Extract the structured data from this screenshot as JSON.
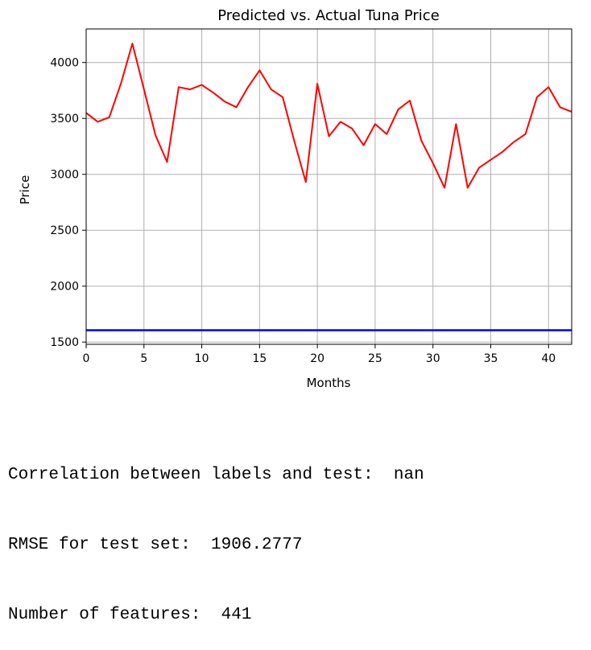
{
  "chart_data": {
    "type": "line",
    "title": "Predicted vs. Actual Tuna Price",
    "xlabel": "Months",
    "ylabel": "Price",
    "xlim": [
      0,
      42
    ],
    "ylim": [
      1480,
      4300
    ],
    "xticks": [
      0,
      5,
      10,
      15,
      20,
      25,
      30,
      35,
      40
    ],
    "yticks": [
      1500,
      2000,
      2500,
      3000,
      3500,
      4000
    ],
    "grid": true,
    "series": [
      {
        "color": "#ff0000",
        "x": [
          0,
          1,
          2,
          3,
          4,
          5,
          6,
          7,
          8,
          9,
          10,
          11,
          12,
          13,
          14,
          15,
          16,
          17,
          18,
          19,
          20,
          21,
          22,
          23,
          24,
          25,
          26,
          27,
          28,
          29,
          30,
          31,
          32,
          33,
          34,
          35,
          36,
          37,
          38,
          39,
          40,
          41,
          42
        ],
        "values": [
          3550,
          3470,
          3510,
          3810,
          4170,
          3760,
          3350,
          3110,
          3780,
          3760,
          3800,
          3730,
          3650,
          3600,
          3780,
          3930,
          3760,
          3690,
          3300,
          2930,
          3810,
          3340,
          3470,
          3410,
          3260,
          3450,
          3360,
          3580,
          3660,
          3300,
          3100,
          2880,
          3450,
          2880,
          3060,
          3130,
          3200,
          3290,
          3360,
          3690,
          3780,
          3600,
          3560
        ]
      },
      {
        "color": "#0000ff",
        "x": [
          0,
          42
        ],
        "values": [
          1606,
          1606
        ]
      }
    ]
  },
  "output": {
    "line1": "Correlation between labels and test:  nan",
    "line2": "RMSE for test set:  1906.2777",
    "line3": "Number of features:  441"
  }
}
